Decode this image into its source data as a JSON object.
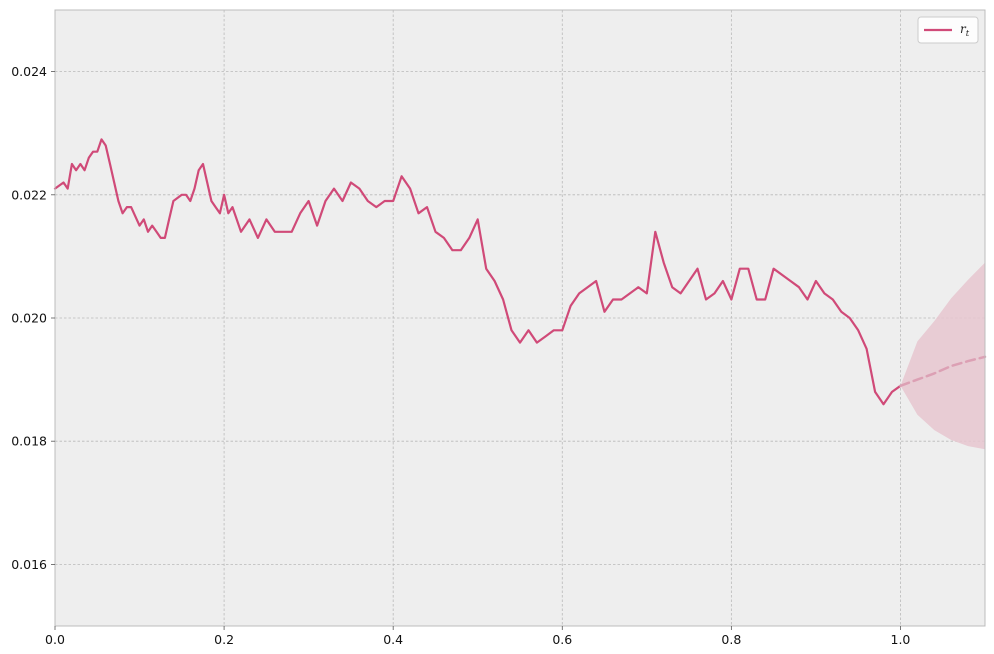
{
  "chart_data": {
    "type": "line",
    "title": "",
    "xlabel": "",
    "ylabel": "",
    "xlim": [
      0.0,
      1.1
    ],
    "ylim": [
      0.015,
      0.025
    ],
    "grid": true,
    "legend_position": "top-right",
    "x_ticks": [
      {
        "value": 0.0,
        "label": "0.0"
      },
      {
        "value": 0.2,
        "label": "0.2"
      },
      {
        "value": 0.4,
        "label": "0.4"
      },
      {
        "value": 0.6,
        "label": "0.6"
      },
      {
        "value": 0.8,
        "label": "0.8"
      },
      {
        "value": 1.0,
        "label": "1.0"
      }
    ],
    "y_ticks": [
      {
        "value": 0.016,
        "label": "0.016"
      },
      {
        "value": 0.018,
        "label": "0.018"
      },
      {
        "value": 0.02,
        "label": "0.020"
      },
      {
        "value": 0.022,
        "label": "0.022"
      },
      {
        "value": 0.024,
        "label": "0.024"
      }
    ],
    "colors": {
      "series": "#d04a78",
      "forecast": "#dca0b4",
      "band": "#e6c5cf",
      "plot_background": "#eeeeee",
      "grid": "#b9b9b9",
      "axes_border": "#bcbcbc"
    },
    "series": [
      {
        "name": "r_t",
        "legend_base": "r",
        "legend_sub": "t",
        "style": "solid",
        "x": [
          0.0,
          0.01,
          0.015,
          0.02,
          0.025,
          0.03,
          0.035,
          0.04,
          0.045,
          0.05,
          0.055,
          0.06,
          0.065,
          0.07,
          0.075,
          0.08,
          0.085,
          0.09,
          0.1,
          0.105,
          0.11,
          0.115,
          0.12,
          0.125,
          0.13,
          0.135,
          0.14,
          0.15,
          0.155,
          0.16,
          0.165,
          0.17,
          0.175,
          0.18,
          0.185,
          0.19,
          0.195,
          0.2,
          0.205,
          0.21,
          0.22,
          0.23,
          0.24,
          0.25,
          0.26,
          0.27,
          0.28,
          0.29,
          0.3,
          0.31,
          0.32,
          0.33,
          0.34,
          0.35,
          0.36,
          0.37,
          0.38,
          0.39,
          0.4,
          0.41,
          0.42,
          0.43,
          0.44,
          0.45,
          0.46,
          0.47,
          0.48,
          0.49,
          0.5,
          0.51,
          0.52,
          0.53,
          0.54,
          0.55,
          0.56,
          0.57,
          0.58,
          0.59,
          0.6,
          0.61,
          0.62,
          0.63,
          0.64,
          0.65,
          0.66,
          0.67,
          0.68,
          0.69,
          0.7,
          0.71,
          0.72,
          0.73,
          0.74,
          0.75,
          0.76,
          0.77,
          0.78,
          0.79,
          0.8,
          0.81,
          0.82,
          0.83,
          0.84,
          0.85,
          0.86,
          0.87,
          0.88,
          0.89,
          0.9,
          0.91,
          0.92,
          0.93,
          0.94,
          0.95,
          0.96,
          0.97,
          0.98,
          0.99,
          1.0
        ],
        "values": [
          0.0221,
          0.0222,
          0.0221,
          0.0225,
          0.0224,
          0.0225,
          0.0224,
          0.0226,
          0.0227,
          0.0227,
          0.0229,
          0.0228,
          0.0225,
          0.0222,
          0.0219,
          0.0217,
          0.0218,
          0.0218,
          0.0215,
          0.0216,
          0.0214,
          0.0215,
          0.0214,
          0.0213,
          0.0213,
          0.0216,
          0.0219,
          0.022,
          0.022,
          0.0219,
          0.0221,
          0.0224,
          0.0225,
          0.0222,
          0.0219,
          0.0218,
          0.0217,
          0.022,
          0.0217,
          0.0218,
          0.0214,
          0.0216,
          0.0213,
          0.0216,
          0.0214,
          0.0214,
          0.0214,
          0.0217,
          0.0219,
          0.0215,
          0.0219,
          0.0221,
          0.0219,
          0.0222,
          0.0221,
          0.0219,
          0.0218,
          0.0219,
          0.0219,
          0.0223,
          0.0221,
          0.0217,
          0.0218,
          0.0214,
          0.0213,
          0.0211,
          0.0211,
          0.0213,
          0.0216,
          0.0208,
          0.0206,
          0.0203,
          0.0198,
          0.0196,
          0.0198,
          0.0196,
          0.0197,
          0.0198,
          0.0198,
          0.0202,
          0.0204,
          0.0205,
          0.0206,
          0.0201,
          0.0203,
          0.0203,
          0.0204,
          0.0205,
          0.0204,
          0.0214,
          0.0209,
          0.0205,
          0.0204,
          0.0206,
          0.0208,
          0.0203,
          0.0204,
          0.0206,
          0.0203,
          0.0208,
          0.0208,
          0.0203,
          0.0203,
          0.0208,
          0.0207,
          0.0206,
          0.0205,
          0.0203,
          0.0206,
          0.0204,
          0.0203,
          0.0201,
          0.02,
          0.0198,
          0.0195,
          0.0188,
          0.0186,
          0.0188,
          0.0189
        ]
      },
      {
        "name": "",
        "style": "dashed",
        "x": [
          1.0,
          1.02,
          1.04,
          1.06,
          1.08,
          1.1
        ],
        "values": [
          0.0189,
          0.019,
          0.0191,
          0.01922,
          0.0193,
          0.01937
        ]
      }
    ],
    "bands": [
      {
        "x": [
          1.0,
          1.02,
          1.04,
          1.06,
          1.08,
          1.1
        ],
        "lower": [
          0.0189,
          0.01843,
          0.01818,
          0.01802,
          0.01792,
          0.01787
        ],
        "upper": [
          0.0189,
          0.01962,
          0.01995,
          0.02032,
          0.02062,
          0.0209
        ]
      }
    ]
  }
}
